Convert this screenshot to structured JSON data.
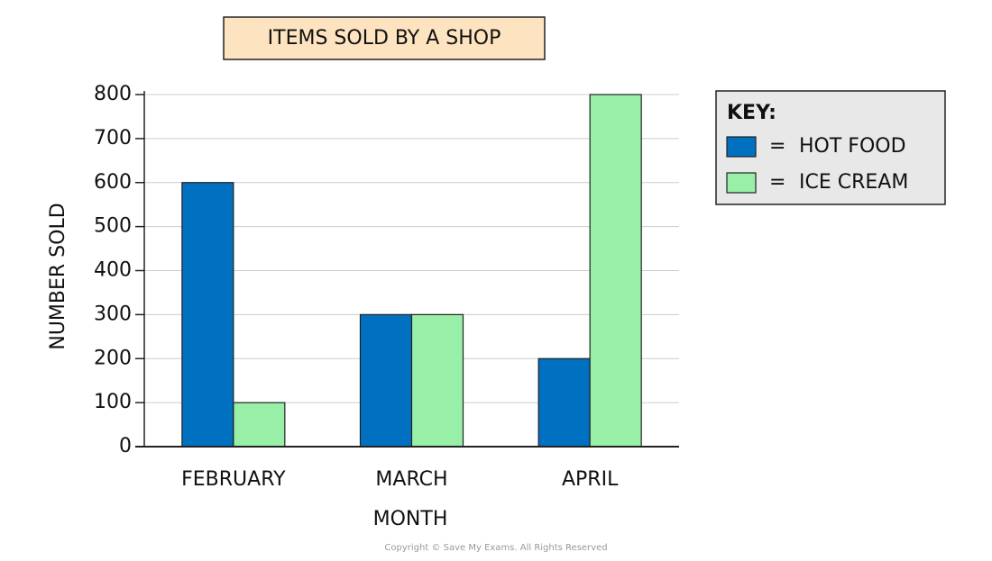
{
  "chart_data": {
    "type": "bar",
    "title": "ITEMS SOLD BY A SHOP",
    "x_label": "MONTH",
    "y_label": "NUMBER SOLD",
    "categories": [
      "FEBRUARY",
      "MARCH",
      "APRIL"
    ],
    "series": [
      {
        "name": "HOT FOOD",
        "color": "#0070c0",
        "values": [
          600,
          300,
          200
        ]
      },
      {
        "name": "ICE CREAM",
        "color": "#98f0a8",
        "values": [
          100,
          300,
          800
        ]
      }
    ],
    "ylim": [
      0,
      800
    ],
    "yticks": [
      0,
      100,
      200,
      300,
      400,
      500,
      600,
      700,
      800
    ],
    "grid": true,
    "legend_title": "KEY:",
    "legend_separator": "=",
    "legend_position": "right",
    "copyright": "Copyright © Save My Exams. All Rights Reserved"
  }
}
